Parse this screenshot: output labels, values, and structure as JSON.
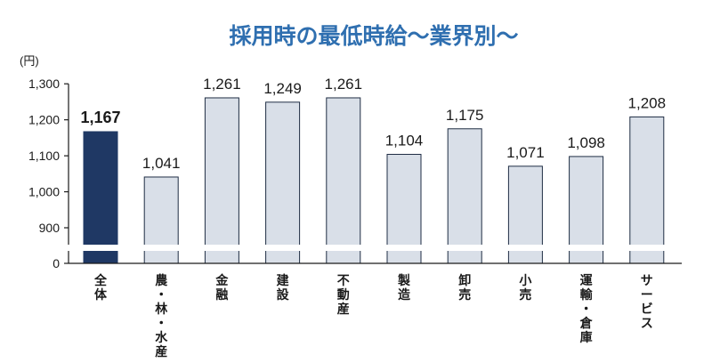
{
  "chart_data": {
    "type": "bar",
    "title": "採用時の最低時給〜業界別〜",
    "ylabel": "(円)",
    "xlabel": "",
    "categories": [
      "全体",
      "農・林・水産",
      "金融",
      "建設",
      "不動産",
      "製造",
      "卸売",
      "小売",
      "運輸・倉庫",
      "サービス"
    ],
    "values": [
      1167,
      1041,
      1261,
      1249,
      1261,
      1104,
      1175,
      1071,
      1098,
      1208
    ],
    "value_labels": [
      "1,167",
      "1,041",
      "1,261",
      "1,249",
      "1,261",
      "1,104",
      "1,175",
      "1,071",
      "1,098",
      "1,208"
    ],
    "y_ticks": [
      "0",
      "900",
      "1,000",
      "1,100",
      "1,200",
      "1,300"
    ],
    "ylim": [
      800,
      1300
    ],
    "axis_break": true,
    "grid": false,
    "highlight_index": 0,
    "colors": {
      "title": "#2f6fb0",
      "highlight_bar": "#1f3864",
      "bar": "#d9dfe8",
      "bar_stroke": "#1f2d44",
      "text": "#1a1a1a"
    }
  }
}
